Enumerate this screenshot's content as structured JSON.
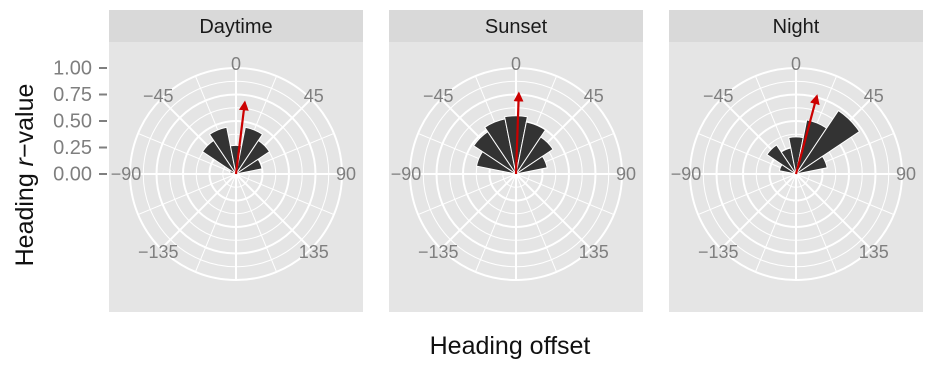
{
  "chart_data": {
    "type": "polar-bar",
    "xlabel": "Heading offset",
    "ylabel": {
      "prefix": "Heading ",
      "italic": "r",
      "suffix": "−value"
    },
    "ylim": [
      0,
      1
    ],
    "y_ticks": [
      "0.00",
      "0.25",
      "0.50",
      "0.75",
      "1.00"
    ],
    "y_tick_values": [
      0,
      0.25,
      0.5,
      0.75,
      1.0
    ],
    "angle_ticks": [
      "0",
      "45",
      "90",
      "135",
      "−135",
      "−90",
      "−45"
    ],
    "angle_tick_values": [
      0,
      45,
      90,
      135,
      -135,
      -90,
      -45
    ],
    "bin_width_deg": 22.5,
    "bar_color": "#333333",
    "arrow_color": "#cc0000",
    "panel_background": "#e5e5e5",
    "strip_background": "#d9d9d9",
    "grid": true,
    "panels": [
      {
        "label": "Daytime",
        "bars": [
          {
            "center": -67.5,
            "value": 0.06
          },
          {
            "center": -45,
            "value": 0.38
          },
          {
            "center": -22.5,
            "value": 0.45
          },
          {
            "center": 0,
            "value": 0.27
          },
          {
            "center": 22.5,
            "value": 0.45
          },
          {
            "center": 45,
            "value": 0.38
          },
          {
            "center": 67.5,
            "value": 0.25
          }
        ],
        "mean": {
          "angle": 7,
          "r": 0.68
        }
      },
      {
        "label": "Sunset",
        "bars": [
          {
            "center": -67.5,
            "value": 0.38
          },
          {
            "center": -45,
            "value": 0.48
          },
          {
            "center": -22.5,
            "value": 0.53
          },
          {
            "center": 0,
            "value": 0.55
          },
          {
            "center": 22.5,
            "value": 0.5
          },
          {
            "center": 45,
            "value": 0.42
          },
          {
            "center": 67.5,
            "value": 0.3
          }
        ],
        "mean": {
          "angle": 2,
          "r": 0.76
        }
      },
      {
        "label": "Night",
        "bars": [
          {
            "center": -67.5,
            "value": 0.16
          },
          {
            "center": -45,
            "value": 0.33
          },
          {
            "center": -22.5,
            "value": 0.25
          },
          {
            "center": 0,
            "value": 0.35
          },
          {
            "center": 22.5,
            "value": 0.52
          },
          {
            "center": 45,
            "value": 0.72
          },
          {
            "center": 67.5,
            "value": 0.3
          }
        ],
        "mean": {
          "angle": 15,
          "r": 0.76
        }
      }
    ]
  }
}
